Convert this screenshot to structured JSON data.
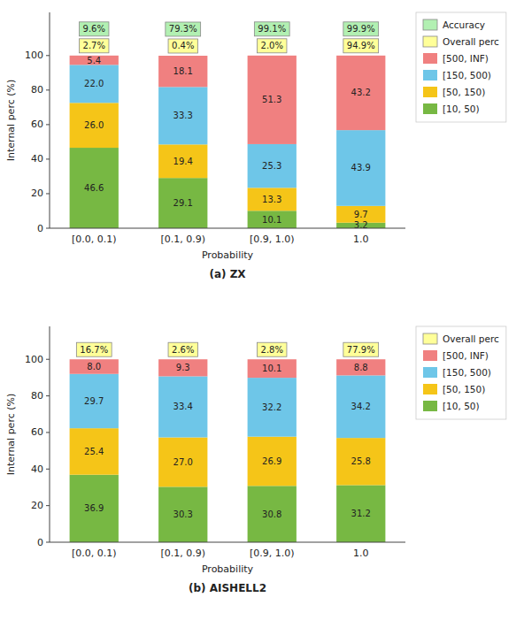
{
  "chart_data": [
    {
      "type": "bar",
      "stacked": true,
      "data_labels": true,
      "grid": false,
      "legend": "right",
      "subtitle": "(a)  ZX",
      "x_label": "Probability",
      "y_label": "Internal perc (%)",
      "categories": [
        "[0.0, 0.1)",
        "[0.1, 0.9)",
        "[0.9, 1.0)",
        "1.0"
      ],
      "ylim": [
        0,
        125
      ],
      "yticks": [
        0,
        20,
        40,
        60,
        80,
        100
      ],
      "series": [
        {
          "name": "[10, 50)",
          "color": "#77b843",
          "values": [
            46.6,
            29.1,
            10.1,
            3.2
          ],
          "value_labels": [
            "46.6",
            "29.1",
            "10.1",
            "3.2"
          ]
        },
        {
          "name": "[50, 150)",
          "color": "#f5c518",
          "values": [
            26.0,
            19.4,
            13.3,
            9.7
          ],
          "value_labels": [
            "26.0",
            "19.4",
            "13.3",
            "9.7"
          ]
        },
        {
          "name": "[150, 500)",
          "color": "#6ec6e8",
          "values": [
            22.0,
            33.3,
            25.3,
            43.9
          ],
          "value_labels": [
            "22.0",
            "33.3",
            "25.3",
            "43.9"
          ]
        },
        {
          "name": "[500, INF)",
          "color": "#f08080",
          "values": [
            5.4,
            18.1,
            51.3,
            43.2
          ],
          "value_labels": [
            "5.4",
            "18.1",
            "51.3",
            "43.2"
          ]
        }
      ],
      "annotations": [
        {
          "name": "Accuracy",
          "color": "#b2f0b2",
          "values": [
            9.6,
            79.3,
            99.1,
            99.9
          ],
          "value_labels": [
            "9.6%",
            "79.3%",
            "99.1%",
            "99.9%"
          ]
        },
        {
          "name": "Overall perc",
          "color": "#ffff99",
          "values": [
            2.7,
            0.4,
            2.0,
            94.9
          ],
          "value_labels": [
            "2.7%",
            "0.4%",
            "2.0%",
            "94.9%"
          ]
        }
      ]
    },
    {
      "type": "bar",
      "stacked": true,
      "data_labels": true,
      "grid": false,
      "legend": "right",
      "subtitle": "(b) AISHELL2",
      "x_label": "Probability",
      "y_label": "Internal perc (%)",
      "categories": [
        "[0.0, 0.1)",
        "[0.1, 0.9)",
        "[0.9, 1.0)",
        "1.0"
      ],
      "ylim": [
        0,
        118
      ],
      "yticks": [
        0,
        20,
        40,
        60,
        80,
        100
      ],
      "series": [
        {
          "name": "[10, 50)",
          "color": "#77b843",
          "values": [
            36.9,
            30.3,
            30.8,
            31.2
          ],
          "value_labels": [
            "36.9",
            "30.3",
            "30.8",
            "31.2"
          ]
        },
        {
          "name": "[50, 150)",
          "color": "#f5c518",
          "values": [
            25.4,
            27.0,
            26.9,
            25.8
          ],
          "value_labels": [
            "25.4",
            "27.0",
            "26.9",
            "25.8"
          ]
        },
        {
          "name": "[150, 500)",
          "color": "#6ec6e8",
          "values": [
            29.7,
            33.4,
            32.2,
            34.2
          ],
          "value_labels": [
            "29.7",
            "33.4",
            "32.2",
            "34.2"
          ]
        },
        {
          "name": "[500, INF)",
          "color": "#f08080",
          "values": [
            8.0,
            9.3,
            10.1,
            8.8
          ],
          "value_labels": [
            "8.0",
            "9.3",
            "10.1",
            "8.8"
          ]
        }
      ],
      "annotations": [
        {
          "name": "Overall perc",
          "color": "#ffff99",
          "values": [
            16.7,
            2.6,
            2.8,
            77.9
          ],
          "value_labels": [
            "16.7%",
            "2.6%",
            "2.8%",
            "77.9%"
          ]
        }
      ]
    }
  ]
}
